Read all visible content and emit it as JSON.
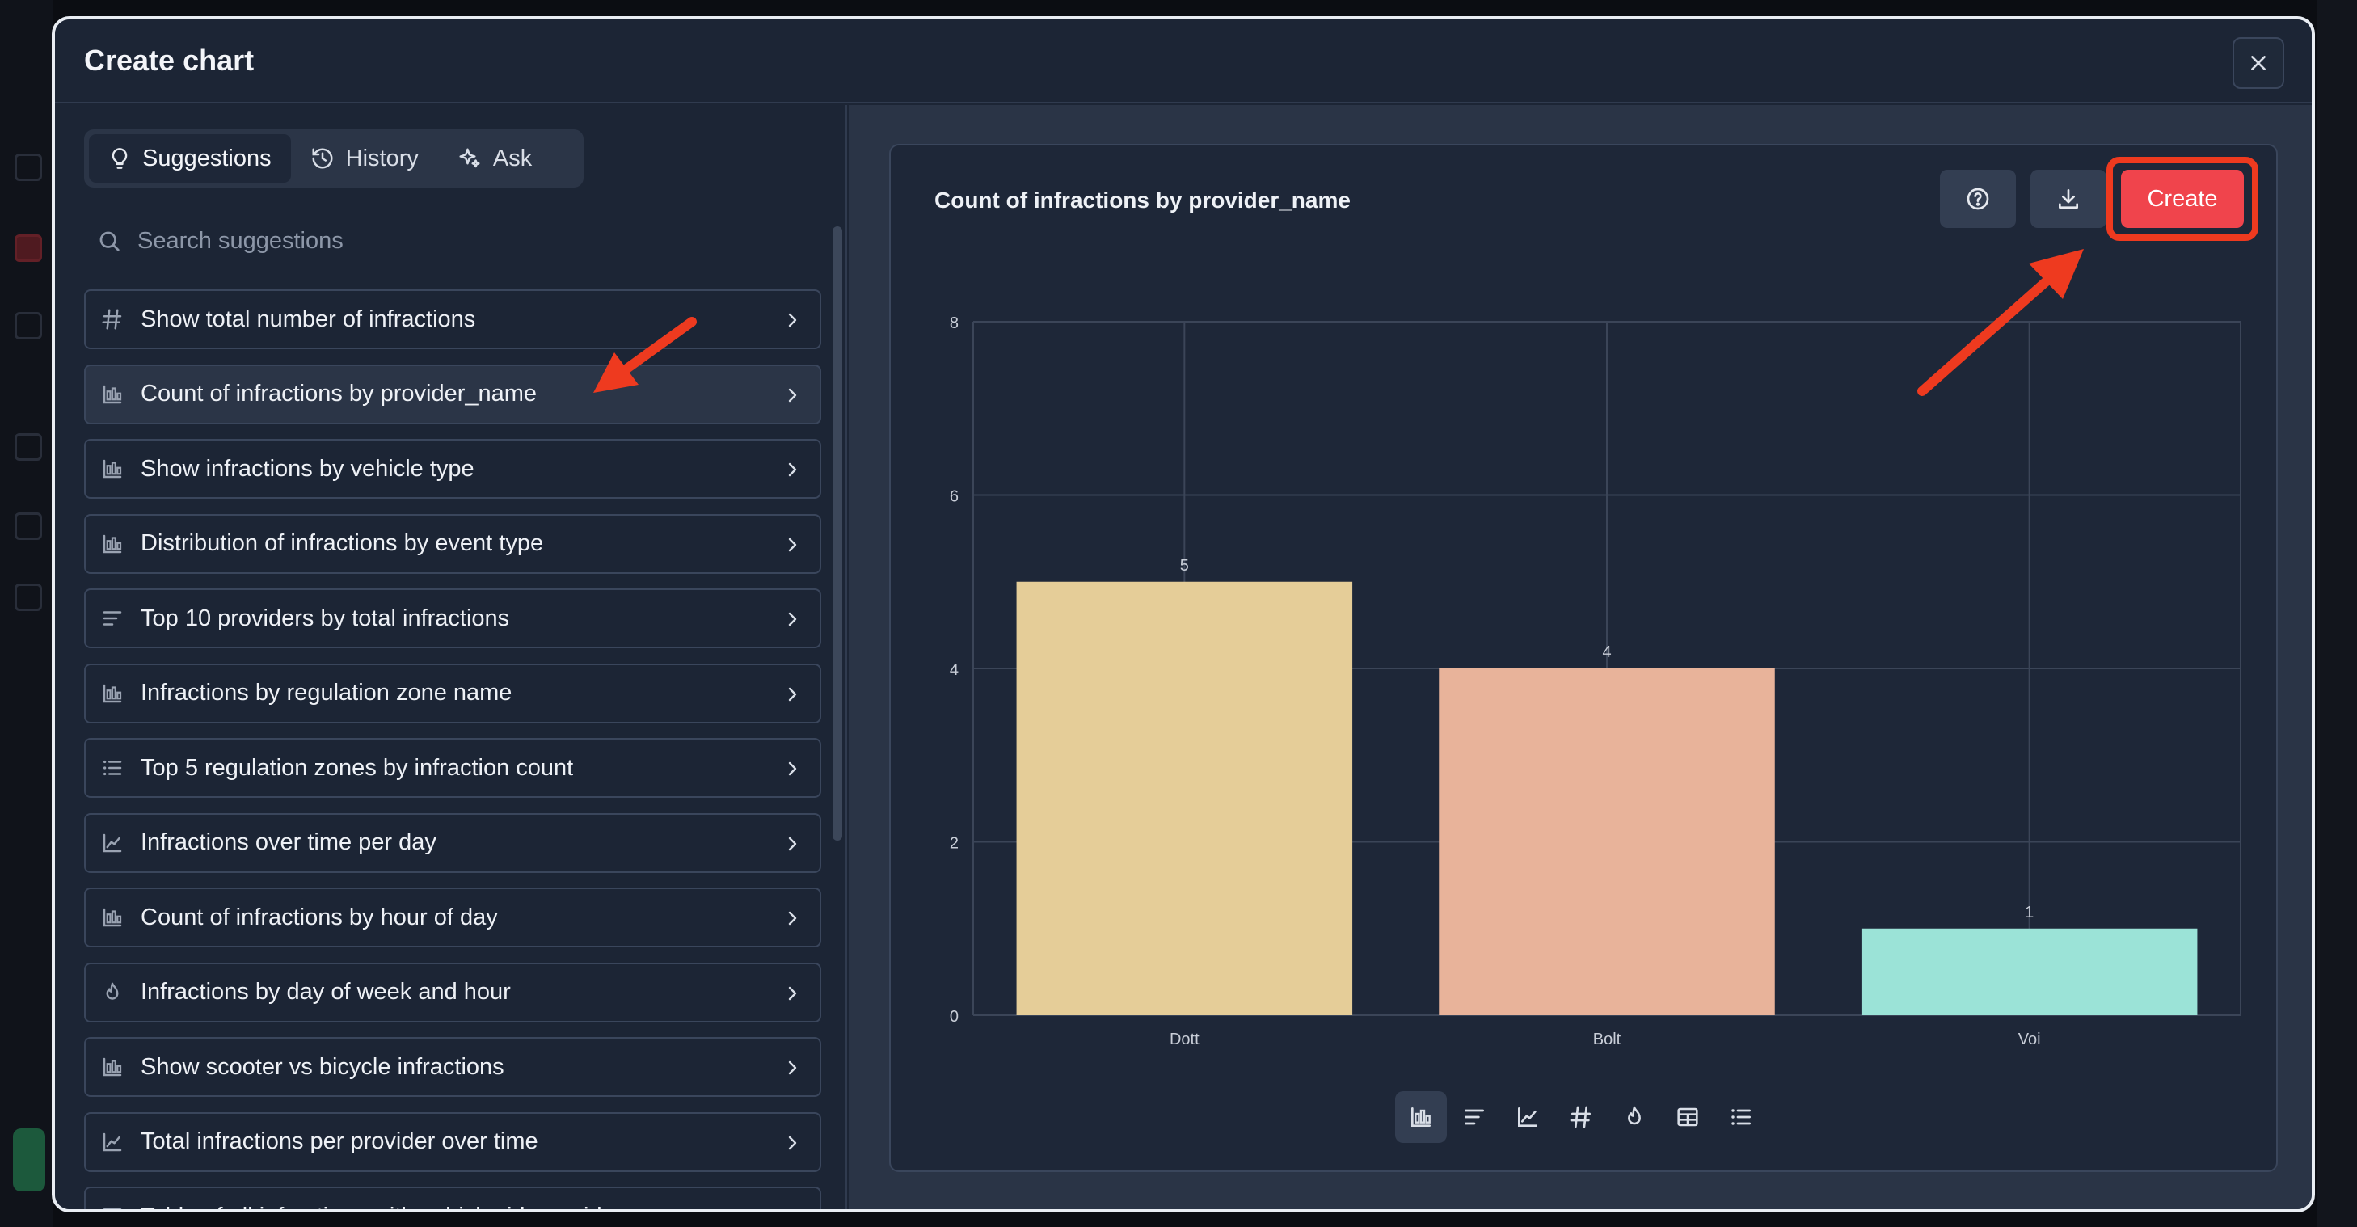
{
  "modal": {
    "title": "Create chart"
  },
  "tabs": [
    {
      "label": "Suggestions",
      "icon": "lightbulb-icon",
      "active": true
    },
    {
      "label": "History",
      "icon": "history-icon",
      "active": false
    },
    {
      "label": "Ask",
      "icon": "sparkle-icon",
      "active": false
    }
  ],
  "search": {
    "placeholder": "Search suggestions"
  },
  "suggestions": [
    {
      "label": "Show total number of infractions",
      "icon": "hash-icon"
    },
    {
      "label": "Count of infractions by provider_name",
      "icon": "bar-chart-icon",
      "selected": true
    },
    {
      "label": "Show infractions by vehicle type",
      "icon": "bar-chart-icon"
    },
    {
      "label": "Distribution of infractions by event type",
      "icon": "bar-chart-icon"
    },
    {
      "label": "Top 10 providers by total infractions",
      "icon": "horizontal-bars-icon"
    },
    {
      "label": "Infractions by regulation zone name",
      "icon": "bar-chart-icon"
    },
    {
      "label": "Top 5 regulation zones by infraction count",
      "icon": "ranked-list-icon"
    },
    {
      "label": "Infractions over time per day",
      "icon": "line-chart-icon"
    },
    {
      "label": "Count of infractions by hour of day",
      "icon": "bar-chart-icon"
    },
    {
      "label": "Infractions by day of week and hour",
      "icon": "flame-icon"
    },
    {
      "label": "Show scooter vs bicycle infractions",
      "icon": "bar-chart-icon"
    },
    {
      "label": "Total infractions per provider over time",
      "icon": "line-chart-icon"
    },
    {
      "label": "Table of all infractions with vehicle_id, provider_name",
      "icon": "table-icon"
    }
  ],
  "chart_panel": {
    "title": "Count of infractions by provider_name",
    "create_label": "Create",
    "help_icon": "help-circle-icon",
    "download_icon": "download-icon"
  },
  "chart_data": {
    "type": "bar",
    "title": "Count of infractions by provider_name",
    "categories": [
      "Dott",
      "Bolt",
      "Voi"
    ],
    "values": [
      5,
      4,
      1
    ],
    "data_labels": [
      "5",
      "4",
      "1"
    ],
    "colors": [
      "#e5cd98",
      "#e8b39a",
      "#9be3d7"
    ],
    "ylim": [
      0,
      8
    ],
    "yticks": [
      0,
      2,
      4,
      6,
      8
    ],
    "grid": true,
    "xlabel": "",
    "ylabel": ""
  },
  "chart_toolbar": [
    {
      "icon": "bar-chart-icon",
      "active": true
    },
    {
      "icon": "horizontal-bars-icon",
      "active": false
    },
    {
      "icon": "line-chart-icon",
      "active": false
    },
    {
      "icon": "hash-icon",
      "active": false
    },
    {
      "icon": "flame-icon",
      "active": false
    },
    {
      "icon": "table-icon",
      "active": false
    },
    {
      "icon": "ranked-list-icon",
      "active": false
    }
  ],
  "colors": {
    "accent": "#f0444c",
    "annotation": "#ee3a1f",
    "modal_bg": "#1c2535",
    "panel_bg": "#2a3446"
  }
}
